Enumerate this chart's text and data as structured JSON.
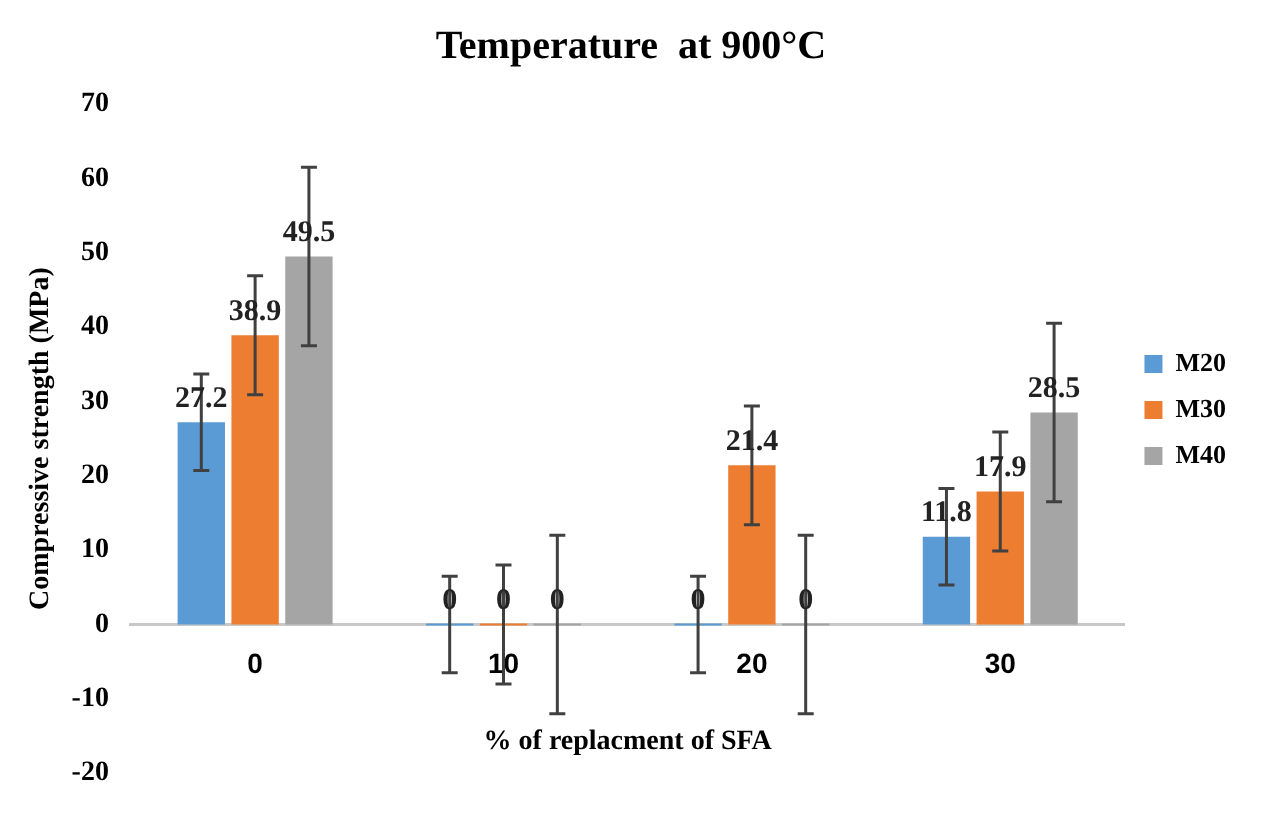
{
  "chart_data": {
    "type": "bar",
    "title": "Temperature  at 900°C",
    "xlabel": "% of replacment of SFA",
    "ylabel": "Compressive strength (MPa)",
    "categories": [
      "0",
      "10",
      "20",
      "30"
    ],
    "series": [
      {
        "name": "M20",
        "color": "#5b9bd5",
        "values": [
          27.2,
          0,
          0,
          11.8
        ],
        "errors": [
          6.5,
          6.5,
          6.5,
          6.5
        ]
      },
      {
        "name": "M30",
        "color": "#ed7d31",
        "values": [
          38.9,
          0,
          21.4,
          17.9
        ],
        "errors": [
          8,
          8,
          8,
          8
        ]
      },
      {
        "name": "M40",
        "color": "#a5a5a5",
        "values": [
          49.5,
          0,
          0,
          28.5
        ],
        "errors": [
          12,
          12,
          12,
          12
        ]
      }
    ],
    "ylim": [
      -20,
      70
    ],
    "yticks": [
      -20,
      -10,
      0,
      10,
      20,
      30,
      40,
      50,
      60,
      70
    ],
    "grid": false,
    "legend": "right",
    "data_labels": true
  }
}
